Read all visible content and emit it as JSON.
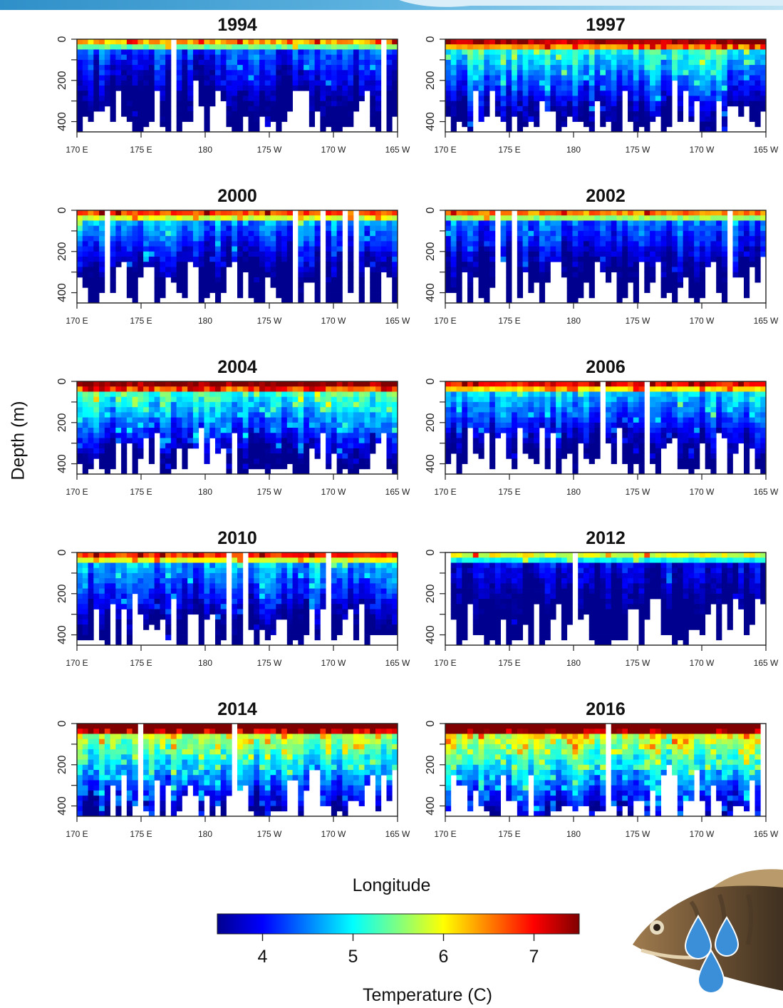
{
  "figure": {
    "ylabel": "Depth (m)",
    "xlabel": "Longitude",
    "colorbar_label": "Temperature (C)",
    "colorbar_ticks": [
      4,
      5,
      6,
      7
    ],
    "colorbar_range": [
      3.5,
      7.5
    ]
  },
  "colors": {
    "banner": "#3a9bd0",
    "scale": [
      "#00008f",
      "#0000ff",
      "#0080ff",
      "#00ffff",
      "#80ff80",
      "#ffff00",
      "#ff8000",
      "#ff0000",
      "#800000"
    ]
  },
  "icons": {
    "decoration": "fish-icon",
    "drops": "water-drop-icon"
  },
  "chart_data": [
    {
      "type": "heatmap",
      "title": "1994",
      "x_ticks": [
        "170 E",
        "175 E",
        "180",
        "175 W",
        "170 W",
        "165 W"
      ],
      "y_ticks": [
        "0",
        "200",
        "400"
      ],
      "ylim": [
        450,
        0
      ],
      "surface_temp": 5.4,
      "deep_temp": 3.9,
      "warm_cells": 0.05
    },
    {
      "type": "heatmap",
      "title": "1997",
      "x_ticks": [
        "170 E",
        "175 E",
        "180",
        "175 W",
        "170 W",
        "165 W"
      ],
      "y_ticks": [
        "0",
        "200",
        "400"
      ],
      "ylim": [
        450,
        0
      ],
      "surface_temp": 6.4,
      "deep_temp": 4.2,
      "warm_cells": 0.15
    },
    {
      "type": "heatmap",
      "title": "2000",
      "x_ticks": [
        "170 E",
        "175 E",
        "180",
        "175 W",
        "170 W",
        "165 W"
      ],
      "y_ticks": [
        "0",
        "200",
        "400"
      ],
      "ylim": [
        450,
        0
      ],
      "surface_temp": 5.8,
      "deep_temp": 3.8,
      "warm_cells": 0.1
    },
    {
      "type": "heatmap",
      "title": "2002",
      "x_ticks": [
        "170 E",
        "175 E",
        "180",
        "175 W",
        "170 W",
        "165 W"
      ],
      "y_ticks": [
        "0",
        "200",
        "400"
      ],
      "ylim": [
        450,
        0
      ],
      "surface_temp": 5.6,
      "deep_temp": 3.9,
      "warm_cells": 0.05
    },
    {
      "type": "heatmap",
      "title": "2004",
      "x_ticks": [
        "170 E",
        "175 E",
        "180",
        "175 W",
        "170 W",
        "165 W"
      ],
      "y_ticks": [
        "0",
        "200",
        "400"
      ],
      "ylim": [
        450,
        0
      ],
      "surface_temp": 6.5,
      "deep_temp": 4.0,
      "warm_cells": 0.3
    },
    {
      "type": "heatmap",
      "title": "2006",
      "x_ticks": [
        "170 E",
        "175 E",
        "180",
        "175 W",
        "170 W",
        "165 W"
      ],
      "y_ticks": [
        "0",
        "200",
        "400"
      ],
      "ylim": [
        450,
        0
      ],
      "surface_temp": 6.1,
      "deep_temp": 3.9,
      "warm_cells": 0.15
    },
    {
      "type": "heatmap",
      "title": "2010",
      "x_ticks": [
        "170 E",
        "175 E",
        "180",
        "175 W",
        "170 W",
        "165 W"
      ],
      "y_ticks": [
        "0",
        "200",
        "400"
      ],
      "ylim": [
        450,
        0
      ],
      "surface_temp": 5.9,
      "deep_temp": 4.0,
      "warm_cells": 0.1
    },
    {
      "type": "heatmap",
      "title": "2012",
      "x_ticks": [
        "170 E",
        "175 E",
        "180",
        "175 W",
        "170 W",
        "165 W"
      ],
      "y_ticks": [
        "0",
        "200",
        "400"
      ],
      "ylim": [
        450,
        0
      ],
      "surface_temp": 5.0,
      "deep_temp": 3.8,
      "warm_cells": 0.03
    },
    {
      "type": "heatmap",
      "title": "2014",
      "x_ticks": [
        "170 E",
        "175 E",
        "180",
        "175 W",
        "170 W",
        "165 W"
      ],
      "y_ticks": [
        "0",
        "200",
        "400"
      ],
      "ylim": [
        450,
        0
      ],
      "surface_temp": 7.0,
      "deep_temp": 4.4,
      "warm_cells": 0.5
    },
    {
      "type": "heatmap",
      "title": "2016",
      "x_ticks": [
        "170 E",
        "175 E",
        "180",
        "175 W",
        "170 W",
        "165 W"
      ],
      "y_ticks": [
        "0",
        "200",
        "400"
      ],
      "ylim": [
        450,
        0
      ],
      "surface_temp": 7.2,
      "deep_temp": 4.6,
      "warm_cells": 0.6
    }
  ]
}
